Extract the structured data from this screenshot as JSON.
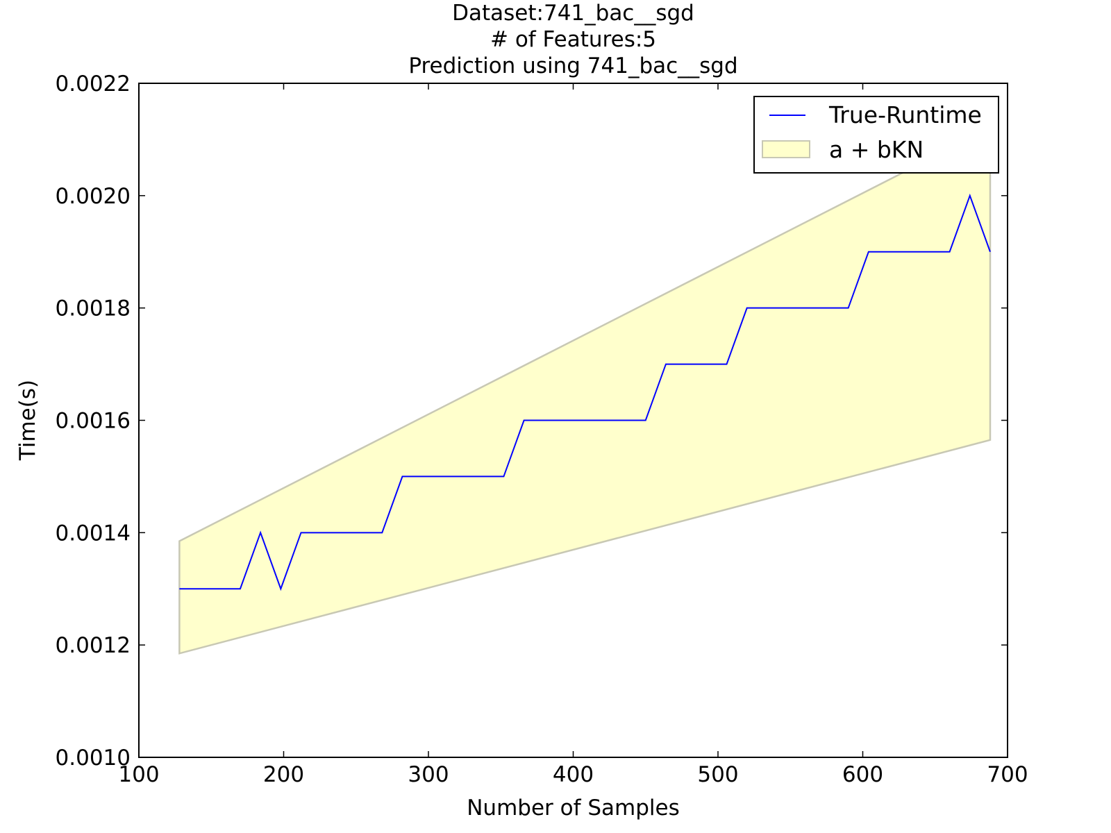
{
  "chart_data": {
    "type": "line",
    "title_lines": [
      "Dataset:741_bac__sgd",
      "# of Features:5",
      "Prediction using 741_bac__sgd"
    ],
    "xlabel": "Number of Samples",
    "ylabel": "Time(s)",
    "xlim": [
      100,
      700
    ],
    "ylim": [
      0.001,
      0.0022
    ],
    "x_ticks": [
      100,
      200,
      300,
      400,
      500,
      600,
      700
    ],
    "x_tick_labels": [
      "100",
      "200",
      "300",
      "400",
      "500",
      "600",
      "700"
    ],
    "y_ticks": [
      0.001,
      0.0012,
      0.0014,
      0.0016,
      0.0018,
      0.002,
      0.0022
    ],
    "y_tick_labels": [
      "0.0010",
      "0.0012",
      "0.0014",
      "0.0016",
      "0.0018",
      "0.0020",
      "0.0022"
    ],
    "grid": false,
    "legend_position": "top-right",
    "series": [
      {
        "name": "True-Runtime",
        "kind": "line",
        "color": "#0000ff",
        "x": [
          128,
          142,
          156,
          170,
          184,
          198,
          212,
          226,
          240,
          254,
          268,
          282,
          296,
          310,
          324,
          338,
          352,
          366,
          380,
          394,
          408,
          422,
          436,
          450,
          464,
          478,
          492,
          506,
          520,
          534,
          548,
          562,
          576,
          590,
          604,
          618,
          632,
          646,
          660,
          674,
          688
        ],
        "y": [
          0.0013,
          0.0013,
          0.0013,
          0.0013,
          0.0014,
          0.0013,
          0.0014,
          0.0014,
          0.0014,
          0.0014,
          0.0014,
          0.0015,
          0.0015,
          0.0015,
          0.0015,
          0.0015,
          0.0015,
          0.0016,
          0.0016,
          0.0016,
          0.0016,
          0.0016,
          0.0016,
          0.0016,
          0.0017,
          0.0017,
          0.0017,
          0.0017,
          0.0018,
          0.0018,
          0.0018,
          0.0018,
          0.0018,
          0.0018,
          0.0019,
          0.0019,
          0.0019,
          0.0019,
          0.0019,
          0.002,
          0.0019
        ]
      },
      {
        "name": "a + bKN",
        "kind": "band",
        "fill_color": "#ffffcc",
        "edge_color": "#c8c8b4",
        "x": [
          128,
          688
        ],
        "upper": [
          0.001385,
          0.00212
        ],
        "lower": [
          0.001185,
          0.001565
        ]
      }
    ]
  }
}
